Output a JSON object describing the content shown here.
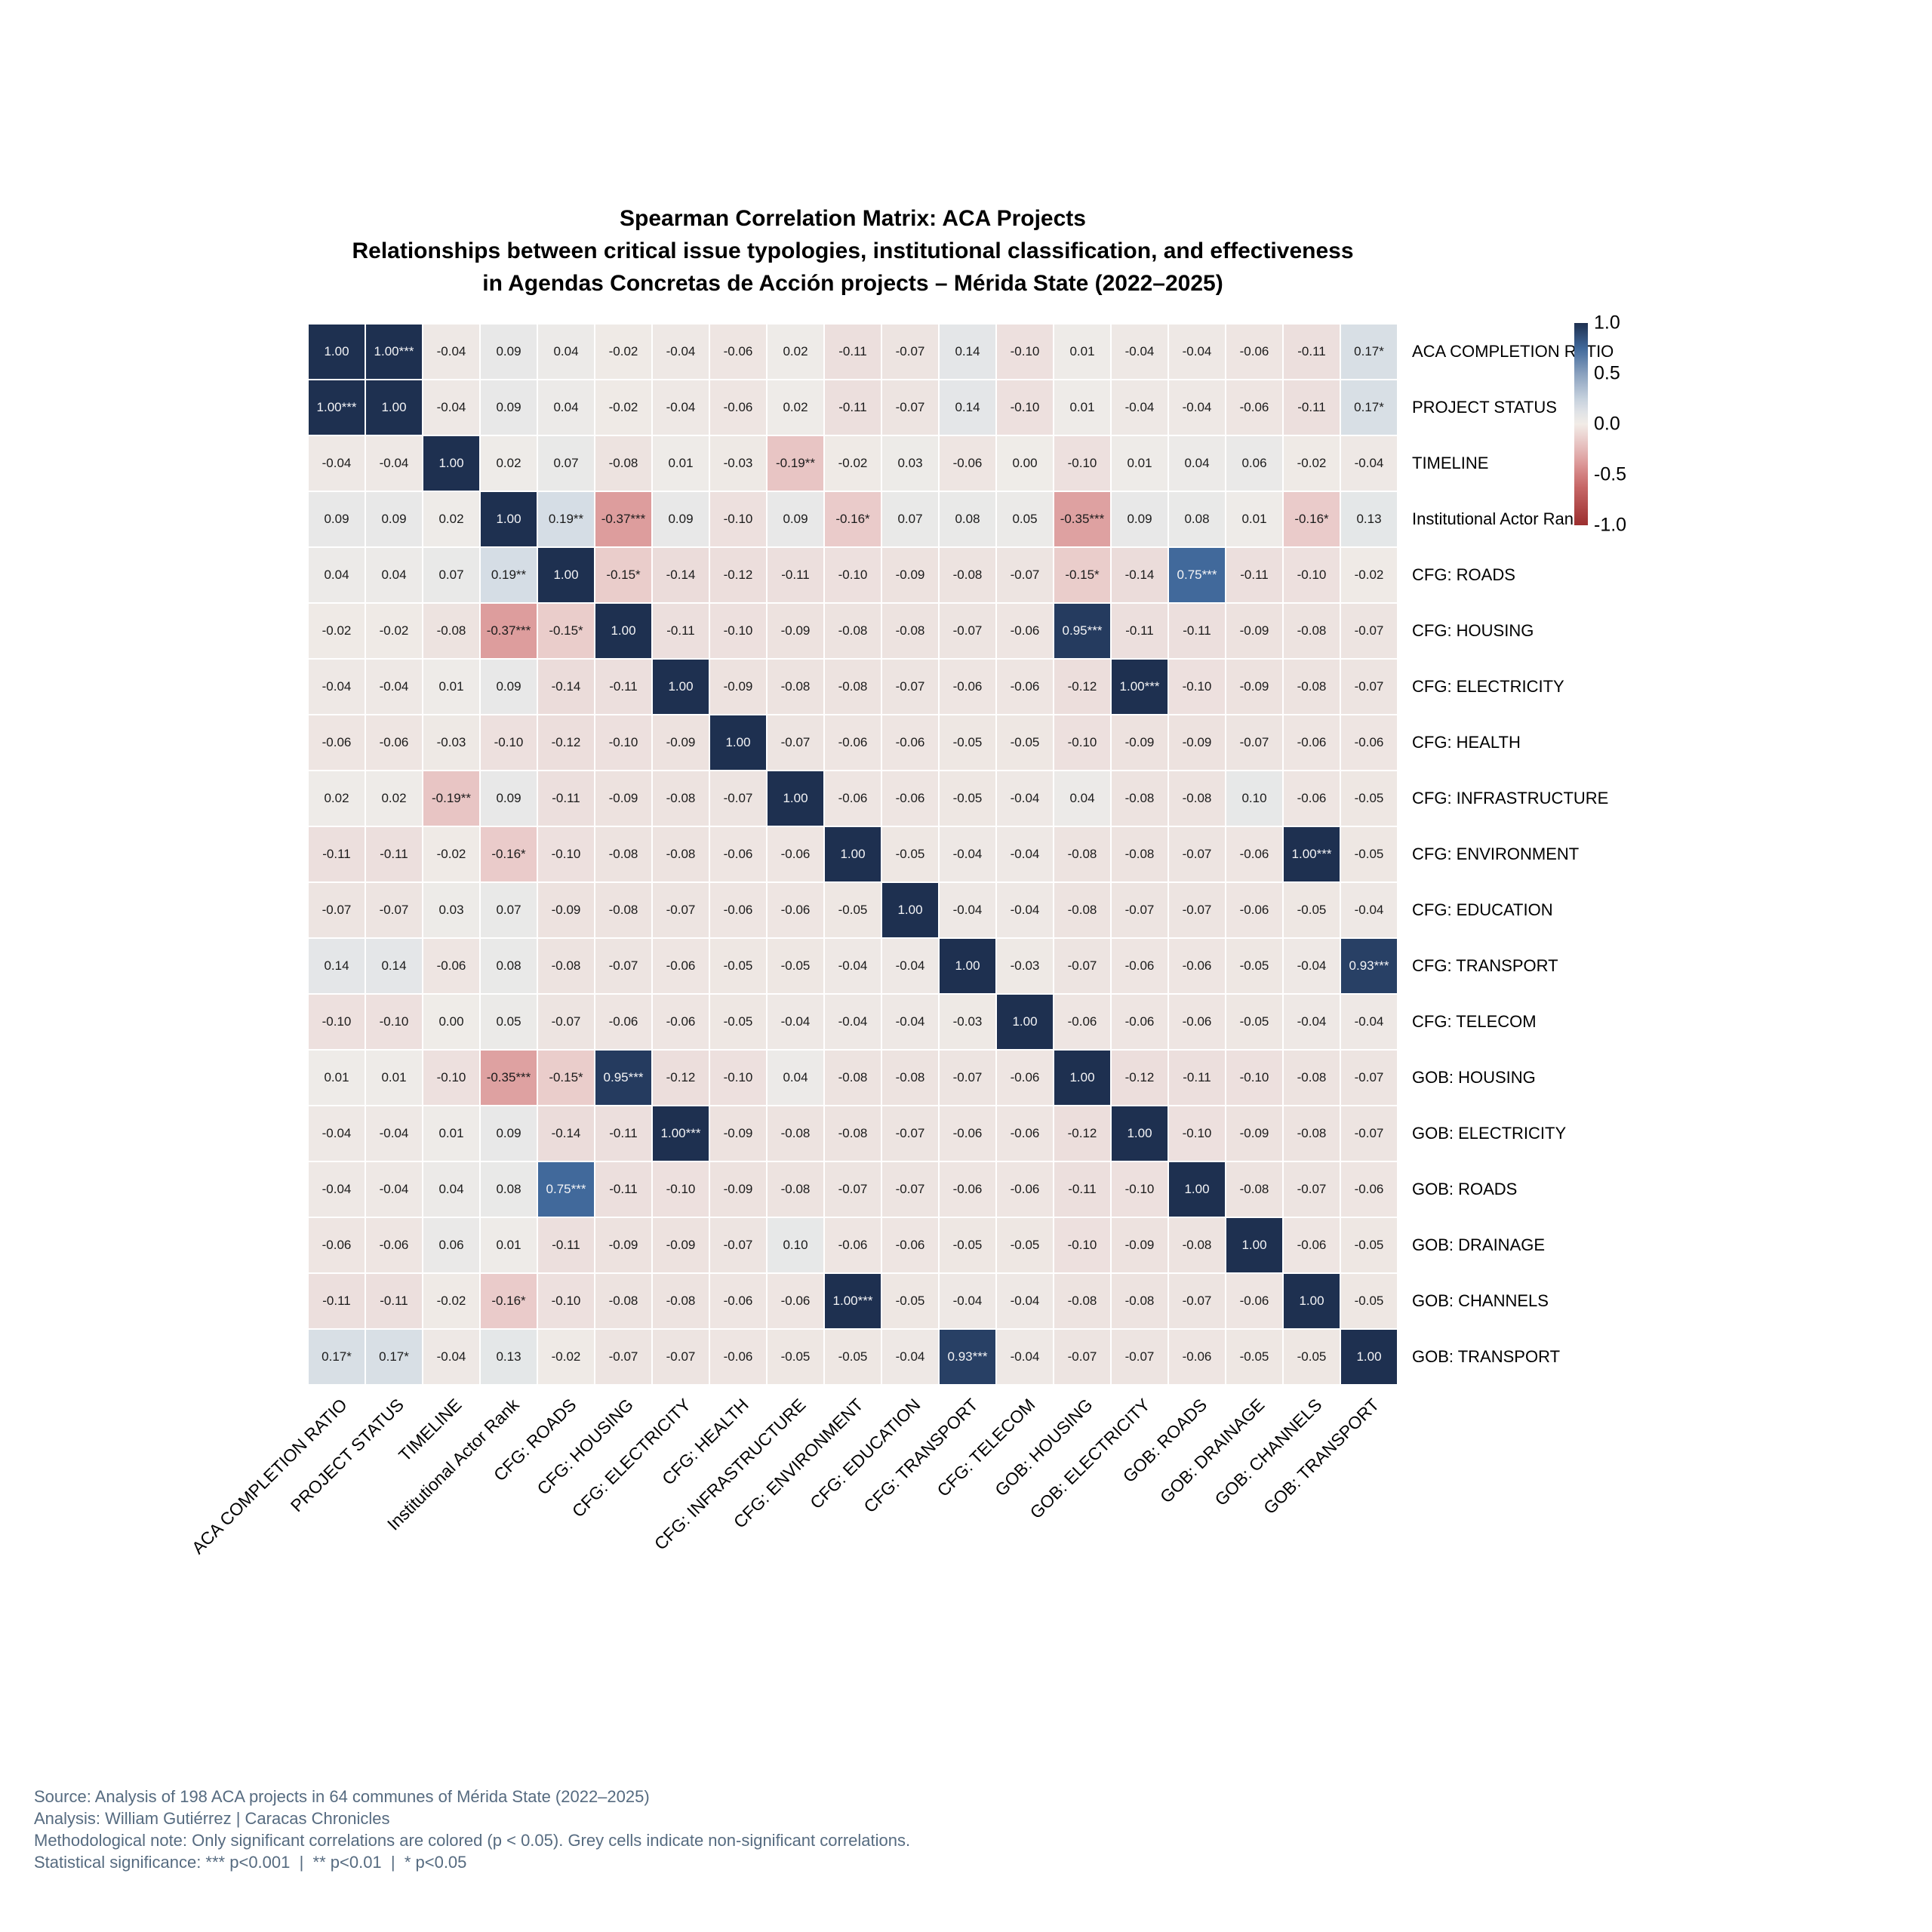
{
  "title": {
    "line1": "Spearman Correlation Matrix: ACA Projects",
    "line2": "Relationships between critical issue typologies, institutional classification, and effectiveness",
    "line3": "in Agendas Concretas de Acción projects – Mérida State (2022–2025)"
  },
  "chart_data": {
    "type": "heatmap",
    "variables": [
      "ACA COMPLETION RATIO",
      "PROJECT STATUS",
      "TIMELINE",
      "Institutional Actor Rank",
      "CFG: ROADS",
      "CFG: HOUSING",
      "CFG: ELECTRICITY",
      "CFG: HEALTH",
      "CFG: INFRASTRUCTURE",
      "CFG: ENVIRONMENT",
      "CFG: EDUCATION",
      "CFG: TRANSPORT",
      "CFG: TELECOM",
      "GOB: HOUSING",
      "GOB: ELECTRICITY",
      "GOB: ROADS",
      "GOB: DRAINAGE",
      "GOB: CHANNELS",
      "GOB: TRANSPORT"
    ],
    "cells": [
      [
        "1.00",
        "1.00***",
        "-0.04",
        "0.09",
        "0.04",
        "-0.02",
        "-0.04",
        "-0.06",
        "0.02",
        "-0.11",
        "-0.07",
        "0.14",
        "-0.10",
        "0.01",
        "-0.04",
        "-0.04",
        "-0.06",
        "-0.11",
        "0.17*"
      ],
      [
        "1.00***",
        "1.00",
        "-0.04",
        "0.09",
        "0.04",
        "-0.02",
        "-0.04",
        "-0.06",
        "0.02",
        "-0.11",
        "-0.07",
        "0.14",
        "-0.10",
        "0.01",
        "-0.04",
        "-0.04",
        "-0.06",
        "-0.11",
        "0.17*"
      ],
      [
        "-0.04",
        "-0.04",
        "1.00",
        "0.02",
        "0.07",
        "-0.08",
        "0.01",
        "-0.03",
        "-0.19**",
        "-0.02",
        "0.03",
        "-0.06",
        "0.00",
        "-0.10",
        "0.01",
        "0.04",
        "0.06",
        "-0.02",
        "-0.04"
      ],
      [
        "0.09",
        "0.09",
        "0.02",
        "1.00",
        "0.19**",
        "-0.37***",
        "0.09",
        "-0.10",
        "0.09",
        "-0.16*",
        "0.07",
        "0.08",
        "0.05",
        "-0.35***",
        "0.09",
        "0.08",
        "0.01",
        "-0.16*",
        "0.13"
      ],
      [
        "0.04",
        "0.04",
        "0.07",
        "0.19**",
        "1.00",
        "-0.15*",
        "-0.14",
        "-0.12",
        "-0.11",
        "-0.10",
        "-0.09",
        "-0.08",
        "-0.07",
        "-0.15*",
        "-0.14",
        "0.75***",
        "-0.11",
        "-0.10",
        "-0.02"
      ],
      [
        "-0.02",
        "-0.02",
        "-0.08",
        "-0.37***",
        "-0.15*",
        "1.00",
        "-0.11",
        "-0.10",
        "-0.09",
        "-0.08",
        "-0.08",
        "-0.07",
        "-0.06",
        "0.95***",
        "-0.11",
        "-0.11",
        "-0.09",
        "-0.08",
        "-0.07"
      ],
      [
        "-0.04",
        "-0.04",
        "0.01",
        "0.09",
        "-0.14",
        "-0.11",
        "1.00",
        "-0.09",
        "-0.08",
        "-0.08",
        "-0.07",
        "-0.06",
        "-0.06",
        "-0.12",
        "1.00***",
        "-0.10",
        "-0.09",
        "-0.08",
        "-0.07"
      ],
      [
        "-0.06",
        "-0.06",
        "-0.03",
        "-0.10",
        "-0.12",
        "-0.10",
        "-0.09",
        "1.00",
        "-0.07",
        "-0.06",
        "-0.06",
        "-0.05",
        "-0.05",
        "-0.10",
        "-0.09",
        "-0.09",
        "-0.07",
        "-0.06",
        "-0.06"
      ],
      [
        "0.02",
        "0.02",
        "-0.19**",
        "0.09",
        "-0.11",
        "-0.09",
        "-0.08",
        "-0.07",
        "1.00",
        "-0.06",
        "-0.06",
        "-0.05",
        "-0.04",
        "0.04",
        "-0.08",
        "-0.08",
        "0.10",
        "-0.06",
        "-0.05"
      ],
      [
        "-0.11",
        "-0.11",
        "-0.02",
        "-0.16*",
        "-0.10",
        "-0.08",
        "-0.08",
        "-0.06",
        "-0.06",
        "1.00",
        "-0.05",
        "-0.04",
        "-0.04",
        "-0.08",
        "-0.08",
        "-0.07",
        "-0.06",
        "1.00***",
        "-0.05"
      ],
      [
        "-0.07",
        "-0.07",
        "0.03",
        "0.07",
        "-0.09",
        "-0.08",
        "-0.07",
        "-0.06",
        "-0.06",
        "-0.05",
        "1.00",
        "-0.04",
        "-0.04",
        "-0.08",
        "-0.07",
        "-0.07",
        "-0.06",
        "-0.05",
        "-0.04"
      ],
      [
        "0.14",
        "0.14",
        "-0.06",
        "0.08",
        "-0.08",
        "-0.07",
        "-0.06",
        "-0.05",
        "-0.05",
        "-0.04",
        "-0.04",
        "1.00",
        "-0.03",
        "-0.07",
        "-0.06",
        "-0.06",
        "-0.05",
        "-0.04",
        "0.93***"
      ],
      [
        "-0.10",
        "-0.10",
        "0.00",
        "0.05",
        "-0.07",
        "-0.06",
        "-0.06",
        "-0.05",
        "-0.04",
        "-0.04",
        "-0.04",
        "-0.03",
        "1.00",
        "-0.06",
        "-0.06",
        "-0.06",
        "-0.05",
        "-0.04",
        "-0.04"
      ],
      [
        "0.01",
        "0.01",
        "-0.10",
        "-0.35***",
        "-0.15*",
        "0.95***",
        "-0.12",
        "-0.10",
        "0.04",
        "-0.08",
        "-0.08",
        "-0.07",
        "-0.06",
        "1.00",
        "-0.12",
        "-0.11",
        "-0.10",
        "-0.08",
        "-0.07"
      ],
      [
        "-0.04",
        "-0.04",
        "0.01",
        "0.09",
        "-0.14",
        "-0.11",
        "1.00***",
        "-0.09",
        "-0.08",
        "-0.08",
        "-0.07",
        "-0.06",
        "-0.06",
        "-0.12",
        "1.00",
        "-0.10",
        "-0.09",
        "-0.08",
        "-0.07"
      ],
      [
        "-0.04",
        "-0.04",
        "0.04",
        "0.08",
        "0.75***",
        "-0.11",
        "-0.10",
        "-0.09",
        "-0.08",
        "-0.07",
        "-0.07",
        "-0.06",
        "-0.06",
        "-0.11",
        "-0.10",
        "1.00",
        "-0.08",
        "-0.07",
        "-0.06"
      ],
      [
        "-0.06",
        "-0.06",
        "0.06",
        "0.01",
        "-0.11",
        "-0.09",
        "-0.09",
        "-0.07",
        "0.10",
        "-0.06",
        "-0.06",
        "-0.05",
        "-0.05",
        "-0.10",
        "-0.09",
        "-0.08",
        "1.00",
        "-0.06",
        "-0.05"
      ],
      [
        "-0.11",
        "-0.11",
        "-0.02",
        "-0.16*",
        "-0.10",
        "-0.08",
        "-0.08",
        "-0.06",
        "-0.06",
        "1.00***",
        "-0.05",
        "-0.04",
        "-0.04",
        "-0.08",
        "-0.08",
        "-0.07",
        "-0.06",
        "1.00",
        "-0.05"
      ],
      [
        "0.17*",
        "0.17*",
        "-0.04",
        "0.13",
        "-0.02",
        "-0.07",
        "-0.07",
        "-0.06",
        "-0.05",
        "-0.05",
        "-0.04",
        "0.93***",
        "-0.04",
        "-0.07",
        "-0.07",
        "-0.06",
        "-0.05",
        "-0.05",
        "1.00"
      ]
    ],
    "colorbar": {
      "ticks": [
        "1.0",
        "0.5",
        "0.0",
        "-0.5",
        "-1.0"
      ],
      "max": 1.0,
      "min": -1.0
    },
    "colors": {
      "positive_strong": "#1e3050",
      "positive_mid": "#41699b",
      "positive_light": "#d5dde5",
      "neutral": "#f2ece7",
      "negative_light": "#e8c5c4",
      "negative_mid": "#dd9d9d",
      "negative_strong": "#9c2f2f",
      "nonsignificant_grey": "#ececea"
    }
  },
  "footer": {
    "lines": [
      "Source: Analysis of 198 ACA projects in 64 communes of Mérida State (2022–2025)",
      "Analysis: William Gutiérrez | Caracas Chronicles",
      "Methodological note: Only significant correlations are colored (p < 0.05). Grey cells indicate non-significant correlations.",
      "Statistical significance: *** p<0.001  |  ** p<0.01  |  * p<0.05"
    ]
  }
}
